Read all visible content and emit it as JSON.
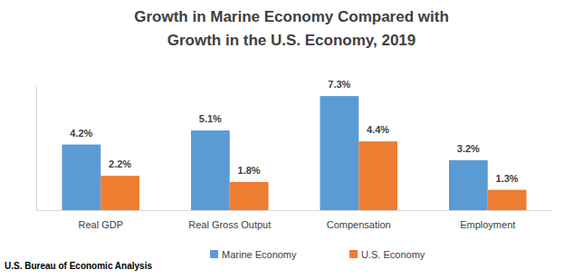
{
  "chart_data": {
    "type": "bar",
    "title": [
      "Growth in Marine Economy Compared with",
      "Growth in the U.S. Economy, 2019"
    ],
    "source": "U.S. Bureau of Economic Analysis",
    "categories": [
      "Real GDP",
      "Real Gross Output",
      "Compensation",
      "Employment"
    ],
    "series": [
      {
        "name": "Marine Economy",
        "color": "#5b9bd5",
        "values": [
          4.2,
          5.1,
          7.3,
          3.2
        ],
        "value_labels": [
          "4.2%",
          "5.1%",
          "7.3%",
          "3.2%"
        ]
      },
      {
        "name": "U.S. Economy",
        "color": "#ed7d31",
        "values": [
          2.2,
          1.8,
          4.4,
          1.3
        ],
        "value_labels": [
          "2.2%",
          "1.8%",
          "4.4%",
          "1.3%"
        ]
      }
    ],
    "ylim": [
      0,
      8
    ],
    "data_labels": true,
    "tick_labels": "x",
    "grid": false,
    "legend": "bottom"
  }
}
